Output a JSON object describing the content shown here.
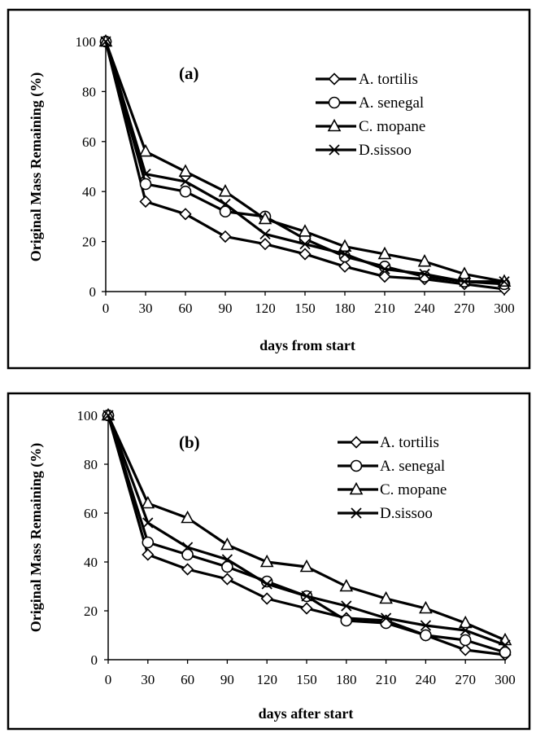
{
  "chart_data": [
    {
      "type": "line",
      "panel_label": "(a)",
      "xlabel": "days from start",
      "ylabel": "Original Mass Remaining  (%)",
      "x": [
        0,
        30,
        60,
        90,
        120,
        150,
        180,
        210,
        240,
        270,
        300
      ],
      "xticks": [
        "0",
        "30",
        "60",
        "90",
        "120",
        "150",
        "180",
        "210",
        "240",
        "270",
        "300"
      ],
      "yticks": [
        "0",
        "20",
        "40",
        "60",
        "80",
        "100"
      ],
      "xlim": [
        0,
        300
      ],
      "ylim": [
        0,
        100
      ],
      "legend_position": "top-right",
      "series": [
        {
          "name": "A. tortilis",
          "marker": "diamond",
          "values": [
            100,
            36,
            31,
            22,
            19,
            15,
            10,
            6,
            5,
            3,
            1
          ]
        },
        {
          "name": "A. senegal",
          "marker": "circle",
          "values": [
            100,
            43,
            40,
            32,
            30,
            21,
            14,
            10,
            6,
            4,
            3
          ]
        },
        {
          "name": "C. mopane",
          "marker": "triangle",
          "values": [
            100,
            56,
            48,
            40,
            29,
            24,
            18,
            15,
            12,
            7,
            4
          ]
        },
        {
          "name": "D.sissoo",
          "marker": "x",
          "values": [
            100,
            47,
            44,
            35,
            23,
            19,
            15,
            9,
            7,
            4,
            4
          ]
        }
      ]
    },
    {
      "type": "line",
      "panel_label": "(b)",
      "xlabel": "days after start",
      "ylabel": "Original Mass Remaining  (%)",
      "x": [
        0,
        30,
        60,
        90,
        120,
        150,
        180,
        210,
        240,
        270,
        300
      ],
      "xticks": [
        "0",
        "30",
        "60",
        "90",
        "120",
        "150",
        "180",
        "210",
        "240",
        "270",
        "300"
      ],
      "yticks": [
        "0",
        "20",
        "40",
        "60",
        "80",
        "100"
      ],
      "xlim": [
        0,
        300
      ],
      "ylim": [
        0,
        100
      ],
      "legend_position": "top-right",
      "series": [
        {
          "name": "A. tortilis",
          "marker": "diamond",
          "values": [
            100,
            43,
            37,
            33,
            25,
            21,
            17,
            16,
            10,
            4,
            2
          ]
        },
        {
          "name": "A. senegal",
          "marker": "circle",
          "values": [
            100,
            48,
            43,
            38,
            32,
            26,
            16,
            15,
            10,
            8,
            3
          ]
        },
        {
          "name": "C. mopane",
          "marker": "triangle",
          "values": [
            100,
            64,
            58,
            47,
            40,
            38,
            30,
            25,
            21,
            15,
            8
          ]
        },
        {
          "name": "D.sissoo",
          "marker": "x",
          "values": [
            100,
            56,
            46,
            41,
            31,
            26,
            22,
            17,
            14,
            12,
            6
          ]
        }
      ]
    }
  ]
}
